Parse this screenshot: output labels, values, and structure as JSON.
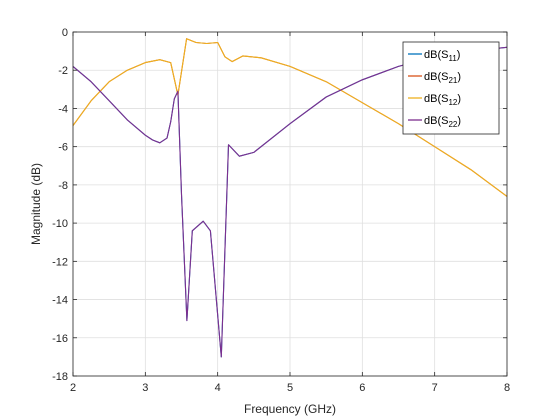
{
  "chart_data": {
    "type": "line",
    "xlabel": "Frequency (GHz)",
    "ylabel": "Magnitude (dB)",
    "xlim": [
      2,
      8
    ],
    "ylim": [
      -18,
      0
    ],
    "xticks": [
      2,
      3,
      4,
      5,
      6,
      7,
      8
    ],
    "yticks": [
      0,
      -2,
      -4,
      -6,
      -8,
      -10,
      -12,
      -14,
      -16,
      -18
    ],
    "grid": true,
    "legend_position": "top-right",
    "series": [
      {
        "name": "dB(S11)",
        "label_main": "dB(S",
        "label_sub": "11",
        "label_end": ")",
        "color": "#0072BD",
        "x": [
          2,
          2.25,
          2.5,
          2.75,
          3,
          3.1,
          3.2,
          3.3,
          3.35,
          3.4,
          3.45,
          3.5,
          3.575,
          3.65,
          3.8,
          3.9,
          4.05,
          4.15,
          4.3,
          4.5,
          5,
          5.5,
          6,
          6.5,
          7,
          7.5,
          8
        ],
        "y": [
          -1.8,
          -2.6,
          -3.6,
          -4.6,
          -5.4,
          -5.65,
          -5.8,
          -5.55,
          -4.7,
          -3.5,
          -3.1,
          -8.5,
          -15.1,
          -10.4,
          -9.9,
          -10.4,
          -17.0,
          -5.9,
          -6.5,
          -6.3,
          -4.8,
          -3.4,
          -2.5,
          -1.8,
          -1.3,
          -1.0,
          -0.8
        ]
      },
      {
        "name": "dB(S21)",
        "label_main": "dB(S",
        "label_sub": "21",
        "label_end": ")",
        "color": "#D95319",
        "x": [
          2,
          2.25,
          2.5,
          2.75,
          3,
          3.2,
          3.35,
          3.45,
          3.57,
          3.7,
          3.85,
          4,
          4.1,
          4.2,
          4.35,
          4.6,
          5,
          5.5,
          6,
          6.5,
          7,
          7.5,
          8
        ],
        "y": [
          -4.9,
          -3.6,
          -2.6,
          -2.0,
          -1.6,
          -1.45,
          -1.6,
          -3.3,
          -0.35,
          -0.55,
          -0.6,
          -0.55,
          -1.3,
          -1.55,
          -1.25,
          -1.35,
          -1.8,
          -2.6,
          -3.7,
          -4.8,
          -6.0,
          -7.2,
          -8.6
        ]
      },
      {
        "name": "dB(S12)",
        "label_main": "dB(S",
        "label_sub": "12",
        "label_end": ")",
        "color": "#EDB120",
        "x": [
          2,
          2.25,
          2.5,
          2.75,
          3,
          3.2,
          3.35,
          3.45,
          3.57,
          3.7,
          3.85,
          4,
          4.1,
          4.2,
          4.35,
          4.6,
          5,
          5.5,
          6,
          6.5,
          7,
          7.5,
          8
        ],
        "y": [
          -4.9,
          -3.6,
          -2.6,
          -2.0,
          -1.6,
          -1.45,
          -1.6,
          -3.3,
          -0.35,
          -0.55,
          -0.6,
          -0.55,
          -1.3,
          -1.55,
          -1.25,
          -1.35,
          -1.8,
          -2.6,
          -3.7,
          -4.8,
          -6.0,
          -7.2,
          -8.6
        ]
      },
      {
        "name": "dB(S22)",
        "label_main": "dB(S",
        "label_sub": "22",
        "label_end": ")",
        "color": "#7E2F8E",
        "x": [
          2,
          2.25,
          2.5,
          2.75,
          3,
          3.1,
          3.2,
          3.3,
          3.35,
          3.4,
          3.45,
          3.5,
          3.575,
          3.65,
          3.8,
          3.9,
          4.05,
          4.15,
          4.3,
          4.5,
          5,
          5.5,
          6,
          6.5,
          7,
          7.5,
          8
        ],
        "y": [
          -1.8,
          -2.6,
          -3.6,
          -4.6,
          -5.4,
          -5.65,
          -5.8,
          -5.55,
          -4.7,
          -3.5,
          -3.1,
          -8.5,
          -15.1,
          -10.4,
          -9.9,
          -10.4,
          -17.0,
          -5.9,
          -6.5,
          -6.3,
          -4.8,
          -3.4,
          -2.5,
          -1.8,
          -1.3,
          -1.0,
          -0.8
        ]
      }
    ]
  }
}
